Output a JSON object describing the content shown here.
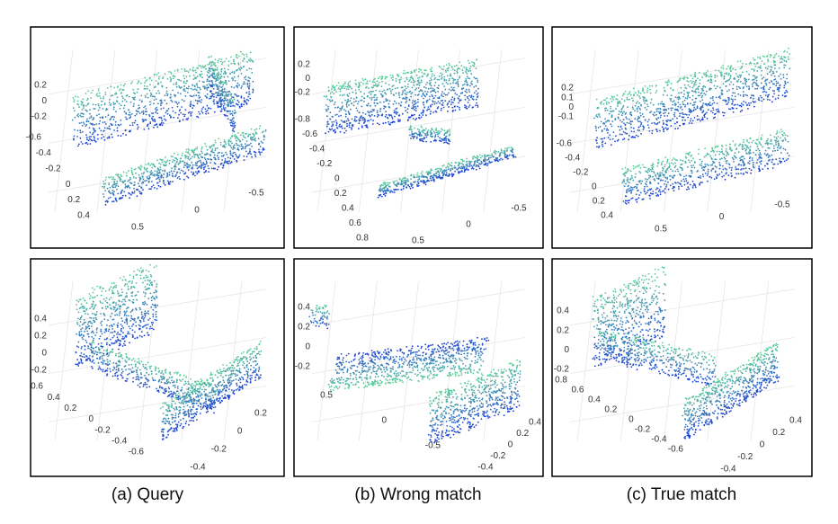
{
  "panels": [
    {
      "z_ticks": [
        "0.2",
        "0",
        "-0.2"
      ],
      "y_ticks": [
        "-0.6",
        "-0.4",
        "-0.2",
        "0",
        "0.2",
        "0.4"
      ],
      "x_ticks": [
        "0.5",
        "0",
        "-0.5"
      ]
    },
    {
      "z_ticks": [
        "0.2",
        "0",
        "-0.2"
      ],
      "y_ticks": [
        "-0.8",
        "-0.6",
        "-0.4",
        "-0.2",
        "0",
        "0.2",
        "0.4",
        "0.6",
        "0.8"
      ],
      "x_ticks": [
        "0.5",
        "0",
        "-0.5"
      ]
    },
    {
      "z_ticks": [
        "0.2",
        "0.1",
        "0",
        "-0.1"
      ],
      "y_ticks": [
        "-0.6",
        "-0.4",
        "-0.2",
        "0",
        "0.2",
        "0.4"
      ],
      "x_ticks": [
        "0.5",
        "0",
        "-0.5"
      ]
    },
    {
      "z_ticks": [
        "0.4",
        "0.2",
        "0",
        "-0.2"
      ],
      "y_ticks": [
        "0.6",
        "0.4",
        "0.2",
        "0",
        "-0.2",
        "-0.4",
        "-0.6"
      ],
      "x_ticks": [
        "-0.4",
        "-0.2",
        "0",
        "0.2"
      ]
    },
    {
      "z_ticks": [
        "0.4",
        "0.2",
        "0",
        "-0.2"
      ],
      "y_ticks": [
        "0.5",
        "0",
        "-0.5"
      ],
      "x_ticks": [
        "-0.4",
        "-0.2",
        "0",
        "0.2",
        "0.4"
      ]
    },
    {
      "z_ticks": [
        "0.4",
        "0.2",
        "0",
        "-0.2"
      ],
      "y_ticks": [
        "0.8",
        "0.6",
        "0.4",
        "0.2",
        "0",
        "-0.2",
        "-0.4",
        "-0.6"
      ],
      "x_ticks": [
        "-0.4",
        "-0.2",
        "0",
        "0.2",
        "0.4"
      ]
    }
  ],
  "captions": [
    "(a) Query",
    "(b) Wrong match",
    "(c) True match"
  ]
}
